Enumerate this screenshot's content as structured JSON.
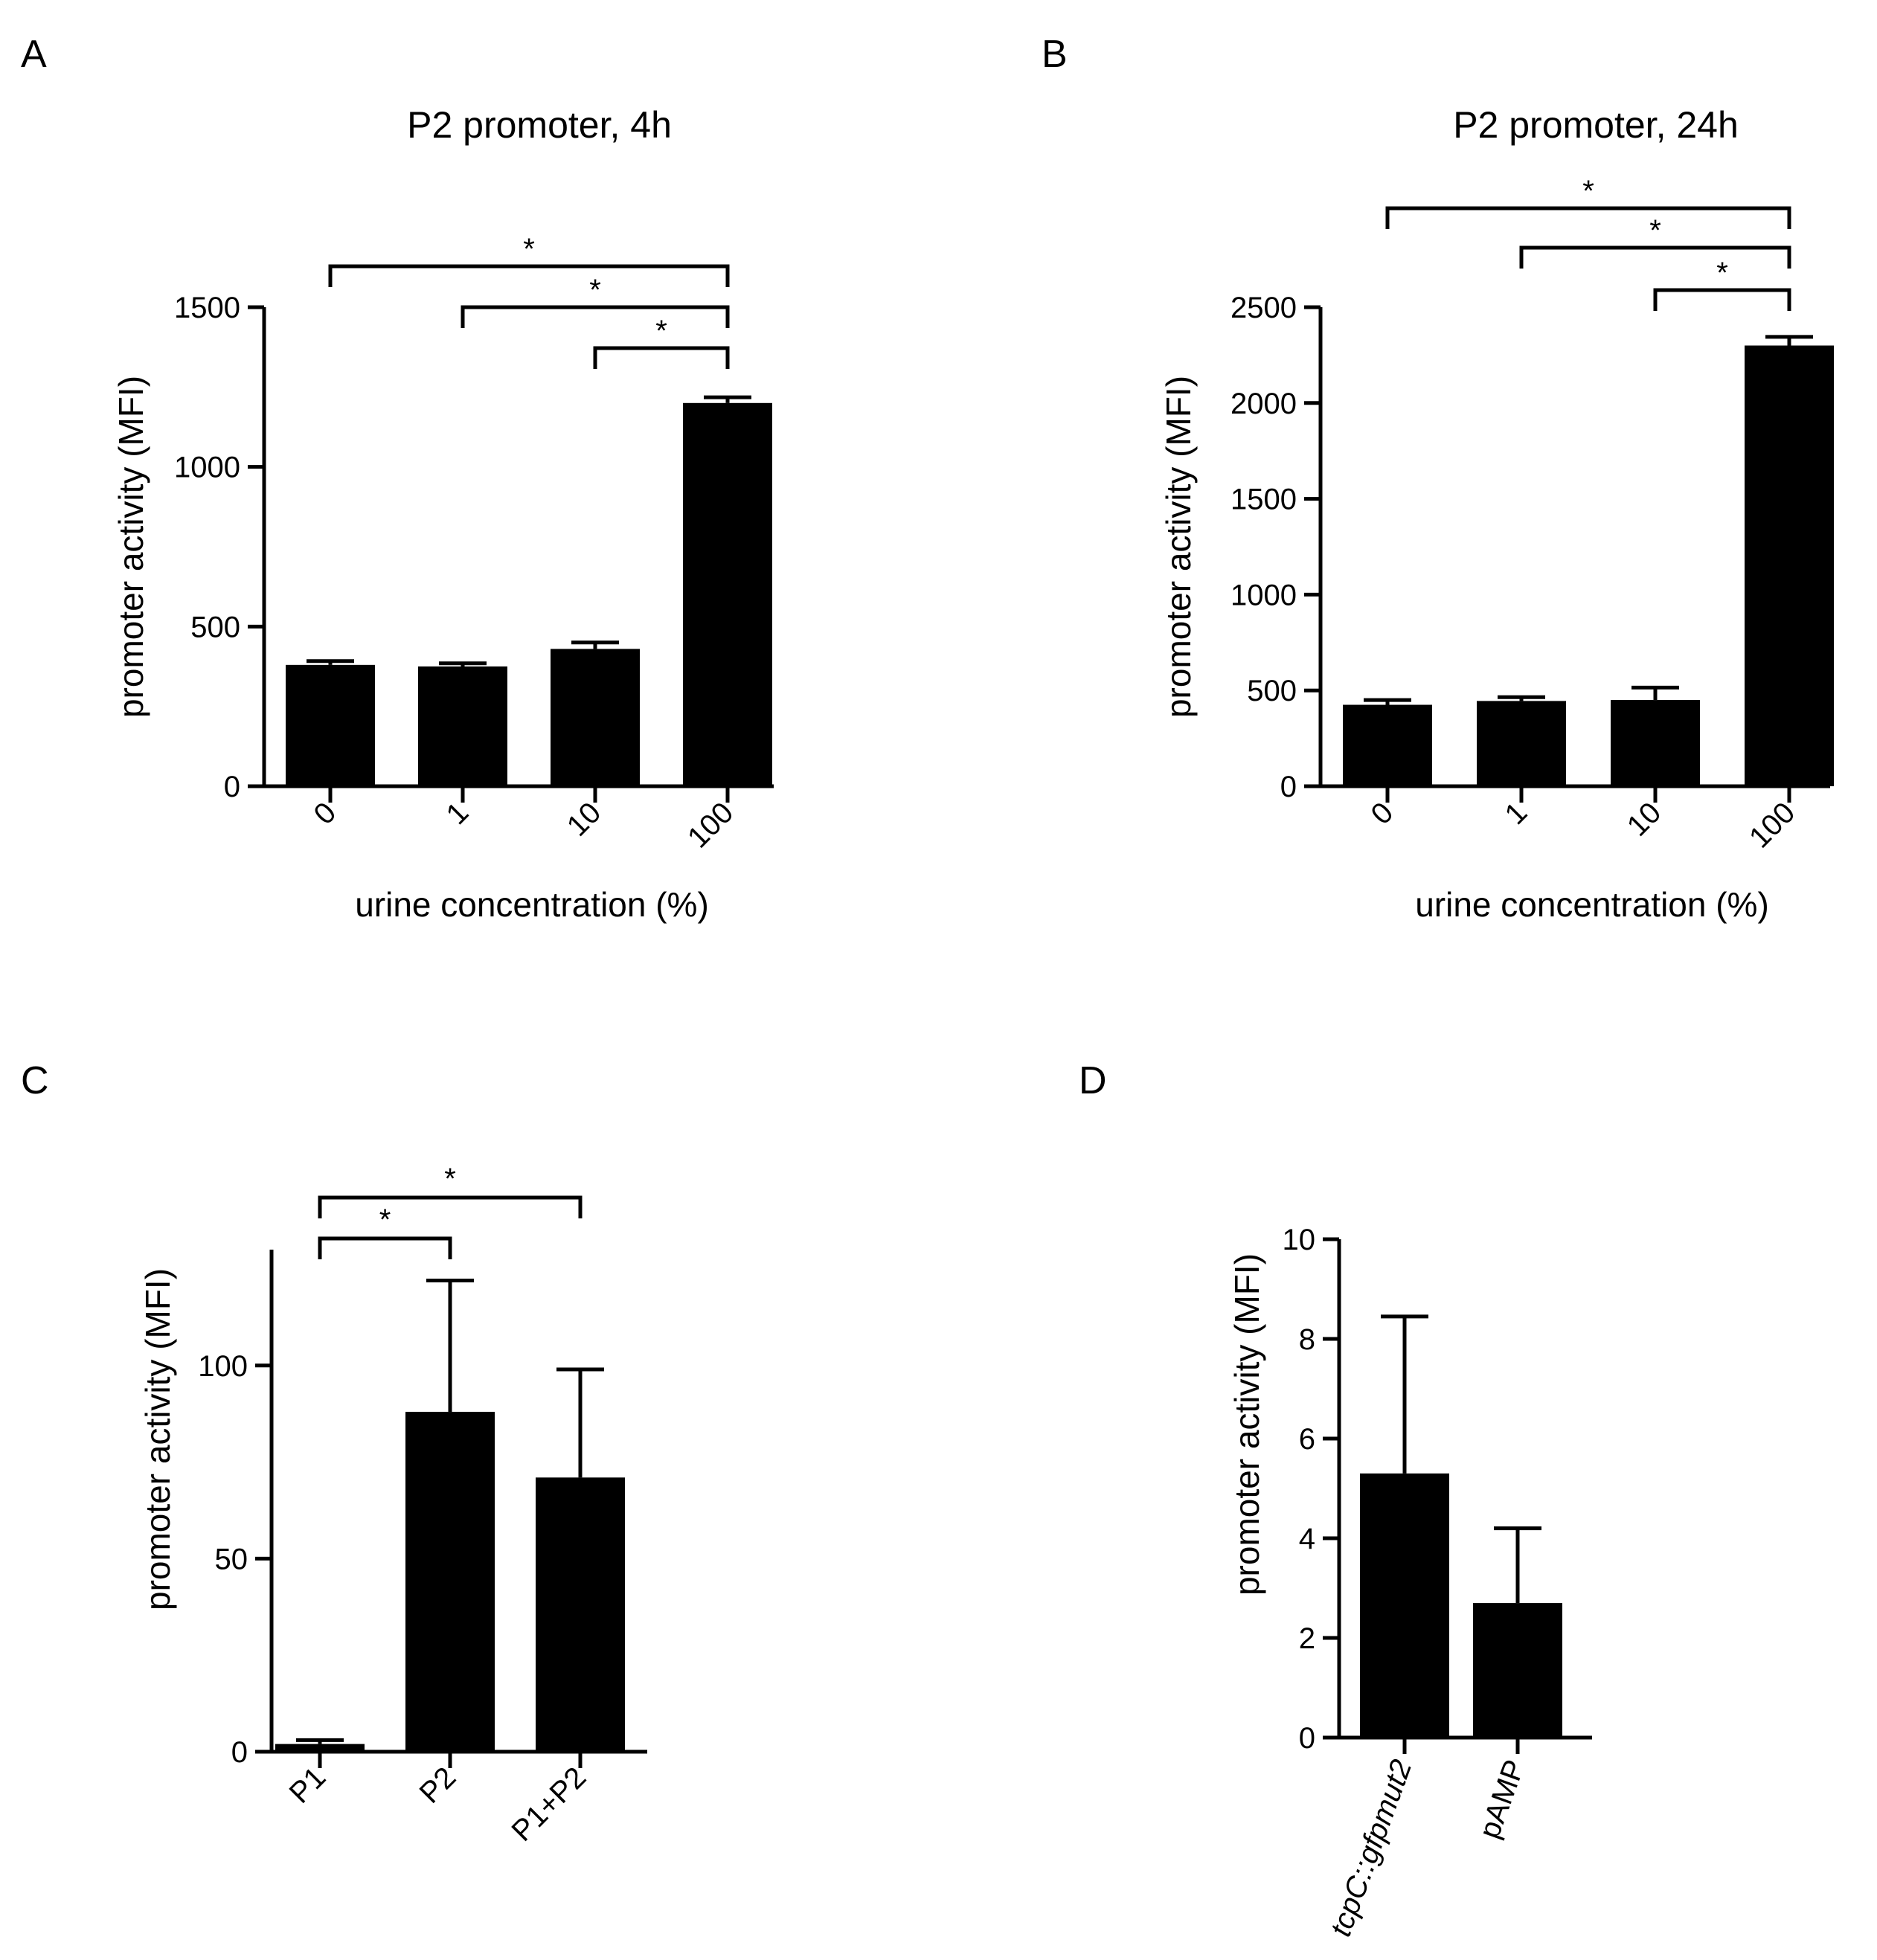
{
  "figure": {
    "panels": [
      {
        "letter": "A"
      },
      {
        "letter": "B"
      },
      {
        "letter": "C"
      },
      {
        "letter": "D"
      }
    ]
  },
  "chart_data": [
    {
      "panel": "A",
      "type": "bar",
      "title": "P2 promoter, 4h",
      "xlabel": "urine concentration (%)",
      "ylabel": "promoter activity (MFI)",
      "categories": [
        "0",
        "1",
        "10",
        "100"
      ],
      "values": [
        380,
        375,
        430,
        1200
      ],
      "errors": [
        12,
        10,
        20,
        18
      ],
      "ylim": [
        0,
        1500
      ],
      "yticks": [
        0,
        500,
        1000,
        1500
      ],
      "significance": [
        {
          "from": 0,
          "to": 3,
          "label": "*"
        },
        {
          "from": 1,
          "to": 3,
          "label": "*"
        },
        {
          "from": 2,
          "to": 3,
          "label": "*"
        }
      ]
    },
    {
      "panel": "B",
      "type": "bar",
      "title": "P2 promoter, 24h",
      "xlabel": "urine concentration (%)",
      "ylabel": "promoter activity (MFI)",
      "categories": [
        "0",
        "1",
        "10",
        "100"
      ],
      "values": [
        425,
        445,
        450,
        2300
      ],
      "errors": [
        25,
        20,
        65,
        45
      ],
      "ylim": [
        0,
        2500
      ],
      "yticks": [
        0,
        500,
        1000,
        1500,
        2000,
        2500
      ],
      "significance": [
        {
          "from": 0,
          "to": 3,
          "label": "*"
        },
        {
          "from": 1,
          "to": 3,
          "label": "*"
        },
        {
          "from": 2,
          "to": 3,
          "label": "*"
        }
      ]
    },
    {
      "panel": "C",
      "type": "bar",
      "title": "",
      "xlabel": "",
      "ylabel": "promoter activity (MFI)",
      "categories": [
        "P1",
        "P2",
        "P1+P2"
      ],
      "values": [
        2,
        88,
        71
      ],
      "errors": [
        1,
        34,
        28
      ],
      "ylim": [
        0,
        130
      ],
      "yticks": [
        0,
        50,
        100
      ],
      "significance": [
        {
          "from": 0,
          "to": 1,
          "label": "*"
        },
        {
          "from": 0,
          "to": 2,
          "label": "*"
        }
      ]
    },
    {
      "panel": "D",
      "type": "bar",
      "title": "",
      "xlabel": "",
      "ylabel": "promoter activity (MFI)",
      "categories": [
        "tcpC::gfpmut2",
        "pAMP"
      ],
      "italic_categories": [
        true,
        false
      ],
      "values": [
        5.3,
        2.7
      ],
      "errors": [
        3.15,
        1.5
      ],
      "ylim": [
        0,
        10
      ],
      "yticks": [
        0,
        2,
        4,
        6,
        8,
        10
      ],
      "significance": []
    }
  ]
}
